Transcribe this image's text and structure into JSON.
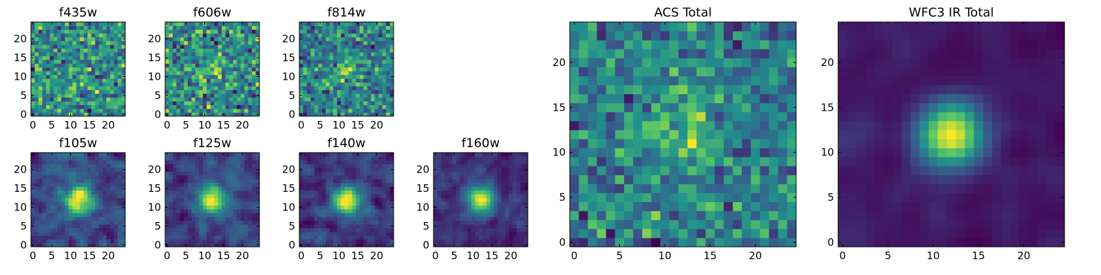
{
  "figure": {
    "description_free": true
  },
  "colormap": {
    "name": "viridis",
    "stops": [
      "#440154",
      "#3b528b",
      "#21918c",
      "#5ec962",
      "#fde725"
    ]
  },
  "chart_data": [
    {
      "type": "heatmap",
      "title": "f435w",
      "grid_size": 25,
      "seed": 11,
      "blob_strength": 0.05,
      "noise_strength": 1.0,
      "smooth": 0,
      "xticks": [
        0,
        5,
        10,
        15,
        20
      ],
      "yticks": [
        0,
        5,
        10,
        15,
        20
      ],
      "xlim": [
        0,
        25
      ],
      "ylim": [
        0,
        25
      ]
    },
    {
      "type": "heatmap",
      "title": "f606w",
      "grid_size": 25,
      "seed": 23,
      "blob_strength": 0.15,
      "noise_strength": 1.0,
      "smooth": 0,
      "xticks": [
        0,
        5,
        10,
        15,
        20
      ],
      "yticks": [
        0,
        5,
        10,
        15,
        20
      ],
      "xlim": [
        0,
        25
      ],
      "ylim": [
        0,
        25
      ]
    },
    {
      "type": "heatmap",
      "title": "f814w",
      "grid_size": 25,
      "seed": 37,
      "blob_strength": 0.25,
      "noise_strength": 1.0,
      "smooth": 0,
      "xticks": [
        0,
        5,
        10,
        15,
        20
      ],
      "yticks": [
        0,
        5,
        10,
        15,
        20
      ],
      "xlim": [
        0,
        25
      ],
      "ylim": [
        0,
        25
      ]
    },
    {
      "type": "heatmap",
      "title": "f105w",
      "grid_size": 25,
      "seed": 41,
      "blob_strength": 0.6,
      "noise_strength": 0.8,
      "smooth": 1,
      "xticks": [
        0,
        5,
        10,
        15,
        20
      ],
      "yticks": [
        0,
        5,
        10,
        15,
        20
      ],
      "xlim": [
        0,
        25
      ],
      "ylim": [
        0,
        25
      ]
    },
    {
      "type": "heatmap",
      "title": "f125w",
      "grid_size": 25,
      "seed": 53,
      "blob_strength": 0.7,
      "noise_strength": 0.8,
      "smooth": 1,
      "xticks": [
        0,
        5,
        10,
        15,
        20
      ],
      "yticks": [
        0,
        5,
        10,
        15,
        20
      ],
      "xlim": [
        0,
        25
      ],
      "ylim": [
        0,
        25
      ]
    },
    {
      "type": "heatmap",
      "title": "f140w",
      "grid_size": 25,
      "seed": 67,
      "blob_strength": 0.75,
      "noise_strength": 0.8,
      "smooth": 1,
      "xticks": [
        0,
        5,
        10,
        15,
        20
      ],
      "yticks": [
        0,
        5,
        10,
        15,
        20
      ],
      "xlim": [
        0,
        25
      ],
      "ylim": [
        0,
        25
      ]
    },
    {
      "type": "heatmap",
      "title": "f160w",
      "grid_size": 25,
      "seed": 79,
      "blob_strength": 0.8,
      "noise_strength": 0.8,
      "smooth": 1,
      "xticks": [
        0,
        5,
        10,
        15,
        20
      ],
      "yticks": [
        0,
        5,
        10,
        15,
        20
      ],
      "xlim": [
        0,
        25
      ],
      "ylim": [
        0,
        25
      ]
    },
    {
      "type": "heatmap",
      "title": "ACS Total",
      "grid_size": 25,
      "seed": 97,
      "blob_strength": 0.35,
      "noise_strength": 1.0,
      "smooth": 0,
      "xticks": [
        0,
        5,
        10,
        15,
        20
      ],
      "yticks": [
        0,
        5,
        10,
        15,
        20
      ],
      "xlim": [
        0,
        25
      ],
      "ylim": [
        0,
        25
      ]
    },
    {
      "type": "heatmap",
      "title": "WFC3 IR Total",
      "grid_size": 25,
      "seed": 101,
      "blob_strength": 1.1,
      "noise_strength": 0.7,
      "smooth": 2,
      "xticks": [
        0,
        5,
        10,
        15,
        20
      ],
      "yticks": [
        0,
        5,
        10,
        15,
        20
      ],
      "xlim": [
        0,
        25
      ],
      "ylim": [
        0,
        25
      ]
    }
  ]
}
